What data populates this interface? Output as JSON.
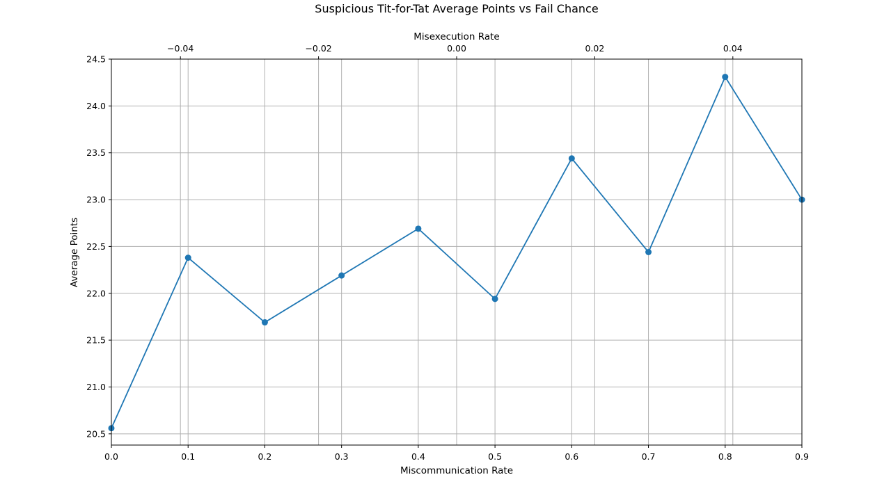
{
  "chart_data": {
    "type": "line",
    "title": "Suspicious Tit-for-Tat Average Points vs Fail Chance",
    "xlabel": "Miscommunication Rate",
    "ylabel": "Average Points",
    "top_xlabel": "Misexecution Rate",
    "x": [
      0.0,
      0.1,
      0.2,
      0.3,
      0.4,
      0.5,
      0.6,
      0.7,
      0.8,
      0.9
    ],
    "y": [
      20.56,
      22.38,
      21.69,
      22.19,
      22.69,
      21.94,
      23.44,
      22.44,
      24.31,
      23.0
    ],
    "xlim": [
      0.0,
      0.9
    ],
    "ylim": [
      20.38,
      24.5
    ],
    "top_xlim": [
      -0.05,
      0.05
    ],
    "x_ticks": [
      0.0,
      0.1,
      0.2,
      0.3,
      0.4,
      0.5,
      0.6,
      0.7,
      0.8,
      0.9
    ],
    "x_tick_labels": [
      "0.0",
      "0.1",
      "0.2",
      "0.3",
      "0.4",
      "0.5",
      "0.6",
      "0.7",
      "0.8",
      "0.9"
    ],
    "y_ticks": [
      20.5,
      21.0,
      21.5,
      22.0,
      22.5,
      23.0,
      23.5,
      24.0,
      24.5
    ],
    "y_tick_labels": [
      "20.5",
      "21.0",
      "21.5",
      "22.0",
      "22.5",
      "23.0",
      "23.5",
      "24.0",
      "24.5"
    ],
    "top_x_ticks": [
      -0.04,
      -0.02,
      0.0,
      0.02,
      0.04
    ],
    "top_x_tick_labels": [
      "−0.04",
      "−0.02",
      "0.00",
      "0.02",
      "0.04"
    ],
    "grid": true,
    "line_color": "#1f77b4",
    "marker": "circle"
  }
}
